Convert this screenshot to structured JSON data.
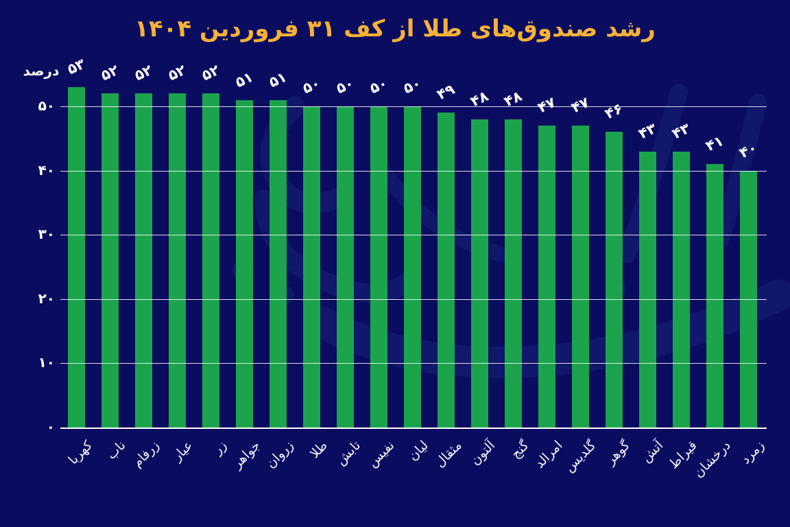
{
  "title": "رشد صندوق‌های طلا از کف ۳۱ فروردین ۱۴۰۴",
  "colors": {
    "background": "#0a0c60",
    "title": "#f6b137",
    "bar": "#1ba44c",
    "text": "#ffffff",
    "gridline": "#ffffff",
    "watermark": "#2b4596"
  },
  "chart_data": {
    "type": "bar",
    "title": "رشد صندوق‌های طلا از کف ۳۱ فروردین ۱۴۰۴",
    "xlabel": "",
    "ylabel": "درصد",
    "ylim": [
      0,
      53
    ],
    "grid": true,
    "legend": null,
    "categories": [
      "کهربا",
      "ناب",
      "زرفام",
      "عیار",
      "زر",
      "جواهر",
      "زروان",
      "طلا",
      "تابش",
      "نفیس",
      "لیان",
      "مثقال",
      "آلتون",
      "گنج",
      "امرالد",
      "گلدیس",
      "گوهر",
      "آتش",
      "قیراط",
      "درخشان",
      "زمرد"
    ],
    "values": [
      53,
      52,
      52,
      52,
      52,
      51,
      51,
      50,
      50,
      50,
      50,
      49,
      48,
      48,
      47,
      47,
      46,
      43,
      43,
      41,
      40
    ],
    "value_labels": [
      "۵۳",
      "۵۲",
      "۵۲",
      "۵۲",
      "۵۲",
      "۵۱",
      "۵۱",
      "۵۰",
      "۵۰",
      "۵۰",
      "۵۰",
      "۴۹",
      "۴۸",
      "۴۸",
      "۴۷",
      "۴۷",
      "۴۶",
      "۴۳",
      "۴۳",
      "۴۱",
      "۴۰"
    ],
    "yticks": [
      {
        "value": 50,
        "label": "۵۰"
      },
      {
        "value": 40,
        "label": "۴۰"
      },
      {
        "value": 30,
        "label": "۳۰"
      },
      {
        "value": 20,
        "label": "۲۰"
      },
      {
        "value": 10,
        "label": "۱۰"
      },
      {
        "value": 0,
        "label": "۰"
      }
    ]
  }
}
